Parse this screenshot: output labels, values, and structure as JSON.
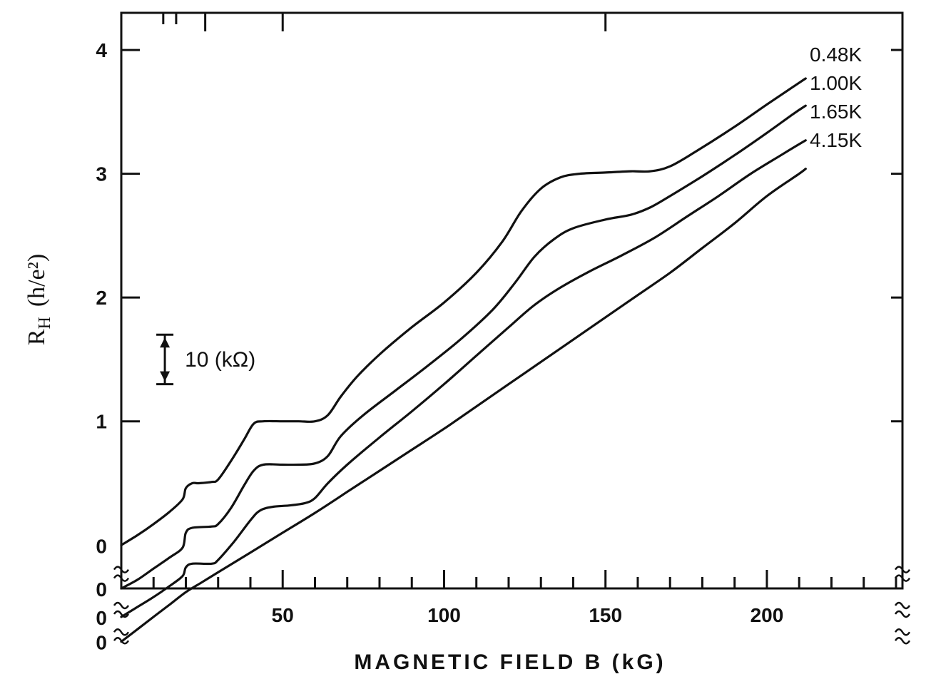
{
  "chart_data": {
    "type": "line",
    "xlabel": "MAGNETIC FIELD B (kG)",
    "ylabel_main": "R",
    "ylabel_sub": "H",
    "ylabel_unit": "(h/e²)",
    "xlim": [
      0,
      242
    ],
    "ylim": [
      -0.35,
      4.3
    ],
    "x_ticks": [
      50,
      100,
      150,
      200
    ],
    "x_tick_labels": [
      "50",
      "100",
      "150",
      "200"
    ],
    "y_ticks": [
      1,
      2,
      3,
      4
    ],
    "y_tick_labels": [
      "1",
      "2",
      "3",
      "4"
    ],
    "zero_labels": [
      "0",
      "0",
      "0",
      "0"
    ],
    "scale_bar": {
      "label": "10 (kΩ)",
      "x": 13.5,
      "y_low": 1.3,
      "y_high": 1.7
    },
    "series": [
      {
        "name": "0.48K",
        "offset": 0.0,
        "points": [
          [
            0,
            0
          ],
          [
            5,
            0.08
          ],
          [
            10,
            0.17
          ],
          [
            15,
            0.27
          ],
          [
            19,
            0.37
          ],
          [
            20,
            0.46
          ],
          [
            22,
            0.5
          ],
          [
            24,
            0.5
          ],
          [
            28,
            0.51
          ],
          [
            30,
            0.53
          ],
          [
            34,
            0.68
          ],
          [
            38,
            0.85
          ],
          [
            41,
            0.98
          ],
          [
            44,
            1.0
          ],
          [
            50,
            1.0
          ],
          [
            55,
            1.0
          ],
          [
            60,
            1.0
          ],
          [
            64,
            1.05
          ],
          [
            68,
            1.2
          ],
          [
            73,
            1.36
          ],
          [
            80,
            1.54
          ],
          [
            90,
            1.76
          ],
          [
            100,
            1.96
          ],
          [
            110,
            2.2
          ],
          [
            118,
            2.45
          ],
          [
            124,
            2.7
          ],
          [
            130,
            2.88
          ],
          [
            136,
            2.97
          ],
          [
            142,
            3.0
          ],
          [
            150,
            3.01
          ],
          [
            158,
            3.02
          ],
          [
            164,
            3.02
          ],
          [
            170,
            3.06
          ],
          [
            178,
            3.18
          ],
          [
            190,
            3.38
          ],
          [
            200,
            3.56
          ],
          [
            208,
            3.7
          ],
          [
            212,
            3.77
          ]
        ]
      },
      {
        "name": "1.00K",
        "offset": -0.35,
        "points": [
          [
            0,
            -0.35
          ],
          [
            5,
            -0.28
          ],
          [
            10,
            -0.19
          ],
          [
            15,
            -0.1
          ],
          [
            19,
            -0.02
          ],
          [
            20,
            0.1
          ],
          [
            22,
            0.14
          ],
          [
            28,
            0.15
          ],
          [
            30,
            0.17
          ],
          [
            34,
            0.3
          ],
          [
            38,
            0.48
          ],
          [
            41,
            0.6
          ],
          [
            44,
            0.65
          ],
          [
            50,
            0.65
          ],
          [
            55,
            0.65
          ],
          [
            60,
            0.66
          ],
          [
            64,
            0.72
          ],
          [
            68,
            0.88
          ],
          [
            75,
            1.05
          ],
          [
            85,
            1.25
          ],
          [
            95,
            1.45
          ],
          [
            105,
            1.66
          ],
          [
            115,
            1.9
          ],
          [
            122,
            2.12
          ],
          [
            128,
            2.33
          ],
          [
            134,
            2.47
          ],
          [
            140,
            2.56
          ],
          [
            150,
            2.63
          ],
          [
            158,
            2.67
          ],
          [
            164,
            2.73
          ],
          [
            170,
            2.82
          ],
          [
            180,
            2.98
          ],
          [
            190,
            3.15
          ],
          [
            200,
            3.33
          ],
          [
            208,
            3.48
          ],
          [
            212,
            3.55
          ]
        ]
      },
      {
        "name": "1.65K",
        "offset": -0.58,
        "points": [
          [
            0,
            -0.58
          ],
          [
            5,
            -0.5
          ],
          [
            10,
            -0.42
          ],
          [
            15,
            -0.33
          ],
          [
            19,
            -0.25
          ],
          [
            20,
            -0.18
          ],
          [
            22,
            -0.15
          ],
          [
            28,
            -0.15
          ],
          [
            30,
            -0.12
          ],
          [
            35,
            0.03
          ],
          [
            40,
            0.2
          ],
          [
            43,
            0.28
          ],
          [
            47,
            0.31
          ],
          [
            52,
            0.32
          ],
          [
            57,
            0.34
          ],
          [
            60,
            0.38
          ],
          [
            64,
            0.5
          ],
          [
            70,
            0.65
          ],
          [
            80,
            0.87
          ],
          [
            90,
            1.08
          ],
          [
            100,
            1.3
          ],
          [
            110,
            1.53
          ],
          [
            120,
            1.76
          ],
          [
            128,
            1.94
          ],
          [
            136,
            2.08
          ],
          [
            145,
            2.21
          ],
          [
            155,
            2.34
          ],
          [
            165,
            2.48
          ],
          [
            175,
            2.65
          ],
          [
            185,
            2.82
          ],
          [
            195,
            3.0
          ],
          [
            205,
            3.16
          ],
          [
            212,
            3.27
          ]
        ]
      },
      {
        "name": "4.15K",
        "offset": -0.78,
        "points": [
          [
            0,
            -0.78
          ],
          [
            5,
            -0.68
          ],
          [
            10,
            -0.58
          ],
          [
            15,
            -0.48
          ],
          [
            20,
            -0.38
          ],
          [
            25,
            -0.3
          ],
          [
            30,
            -0.22
          ],
          [
            40,
            -0.06
          ],
          [
            50,
            0.1
          ],
          [
            60,
            0.26
          ],
          [
            70,
            0.43
          ],
          [
            80,
            0.6
          ],
          [
            90,
            0.77
          ],
          [
            100,
            0.94
          ],
          [
            110,
            1.12
          ],
          [
            120,
            1.3
          ],
          [
            130,
            1.48
          ],
          [
            140,
            1.66
          ],
          [
            150,
            1.84
          ],
          [
            160,
            2.02
          ],
          [
            170,
            2.2
          ],
          [
            180,
            2.4
          ],
          [
            190,
            2.6
          ],
          [
            200,
            2.82
          ],
          [
            210,
            3.0
          ],
          [
            212,
            3.04
          ]
        ]
      }
    ]
  }
}
